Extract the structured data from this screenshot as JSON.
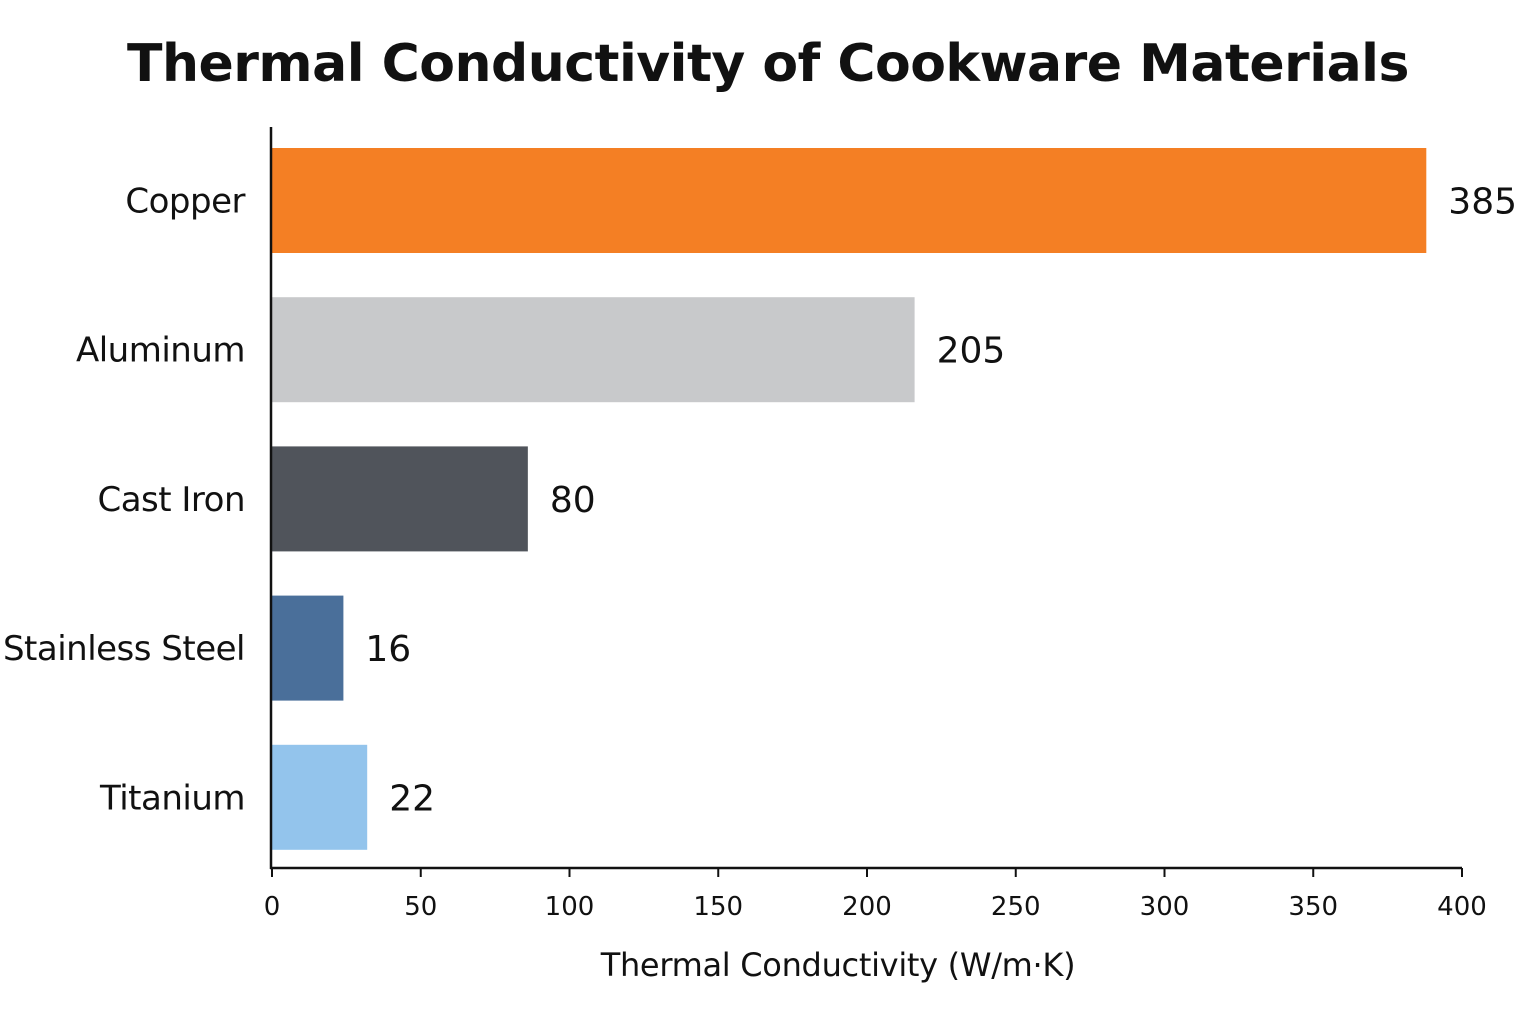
{
  "chart_data": {
    "type": "bar",
    "orientation": "horizontal",
    "title": "Thermal Conductivity of Cookware Materials",
    "xlabel": "Thermal Conductivity (W/m·K)",
    "ylabel": "",
    "xlim": [
      0,
      400
    ],
    "xticks": [
      0,
      50,
      100,
      150,
      200,
      250,
      300,
      350,
      400
    ],
    "grid": false,
    "categories": [
      "Copper",
      "Aluminum",
      "Cast Iron",
      "Stainless Steel",
      "Titanium"
    ],
    "values": [
      385,
      205,
      80,
      16,
      22
    ],
    "bar_lengths": [
      388,
      216,
      86,
      24,
      32
    ],
    "data_labels": [
      "385",
      "205",
      "80",
      "16",
      "22"
    ],
    "colors": [
      "#f47f24",
      "#c8c9cb",
      "#50545b",
      "#4a6f9a",
      "#93c4ec"
    ]
  }
}
